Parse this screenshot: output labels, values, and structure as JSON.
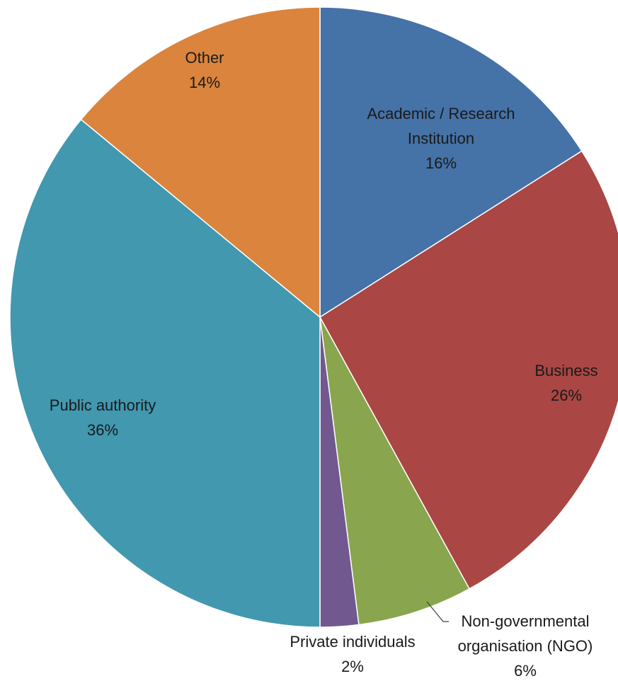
{
  "chart_data": {
    "type": "pie",
    "title": "",
    "slices": [
      {
        "label_lines": [
          "Academic / Research",
          "Institution"
        ],
        "value_label": "16%",
        "value": 16,
        "color": "#4572a7"
      },
      {
        "label_lines": [
          "Business"
        ],
        "value_label": "26%",
        "value": 26,
        "color": "#aa4643"
      },
      {
        "label_lines": [
          "Non-governmental",
          "organisation (NGO)"
        ],
        "value_label": "6%",
        "value": 6,
        "color": "#89a54e"
      },
      {
        "label_lines": [
          "Private individuals"
        ],
        "value_label": "2%",
        "value": 2,
        "color": "#71588f"
      },
      {
        "label_lines": [
          "Public authority"
        ],
        "value_label": "36%",
        "value": 36,
        "color": "#4198af"
      },
      {
        "label_lines": [
          "Other"
        ],
        "value_label": "14%",
        "value": 14,
        "color": "#db843d"
      }
    ]
  }
}
